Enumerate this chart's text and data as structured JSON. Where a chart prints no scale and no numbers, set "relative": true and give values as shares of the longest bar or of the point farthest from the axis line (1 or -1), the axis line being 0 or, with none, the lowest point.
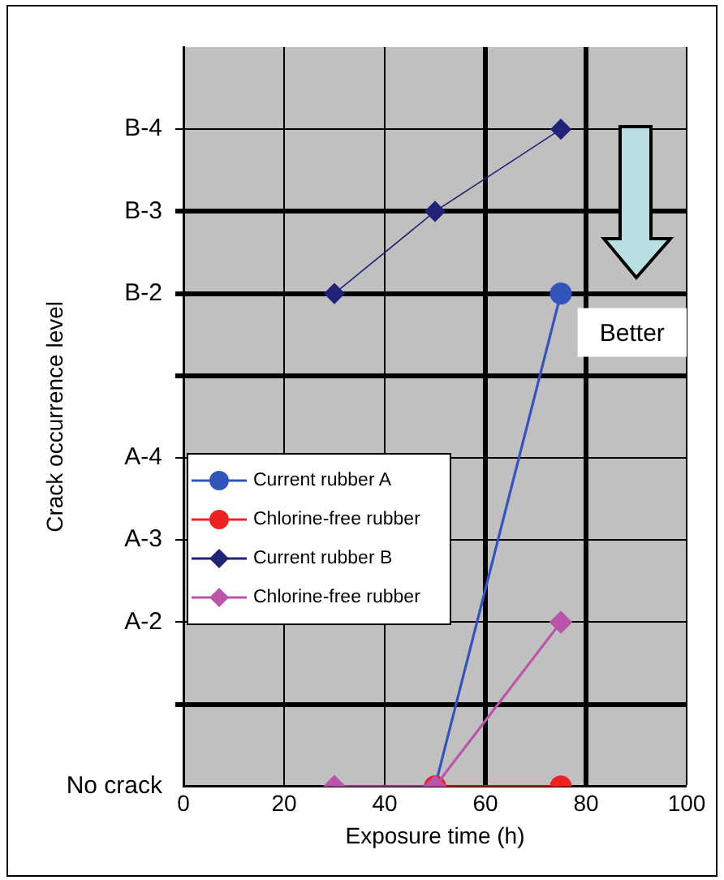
{
  "chart_data": {
    "type": "line",
    "xlabel": "Exposure time (h)",
    "ylabel": "Crack occurrence level",
    "xlim": [
      0,
      100
    ],
    "xticks": [
      0,
      20,
      40,
      60,
      80,
      100
    ],
    "relative": true,
    "y_categories": [
      null,
      "B-4",
      "B-3",
      "B-2",
      null,
      "A-4",
      "A-3",
      "A-2",
      null,
      "No crack"
    ],
    "grid": true,
    "legend": "left",
    "line_style": "solid",
    "series": [
      {
        "name": "Current rubber A",
        "color": "#3355bb",
        "marker": "circle",
        "x": [
          50,
          75
        ],
        "values": [
          0,
          0.75
        ]
      },
      {
        "name": "Chlorine-free rubber",
        "color": "#ee2222",
        "marker": "circle",
        "x": [
          50,
          75
        ],
        "values": [
          0,
          0
        ]
      },
      {
        "name": "Current rubber B",
        "color": "#222277",
        "marker": "diamond",
        "x": [
          30,
          50,
          75
        ],
        "values": [
          0.75,
          0.875,
          1
        ]
      },
      {
        "name": "Chlorine-free rubber",
        "color": "#bb55aa",
        "marker": "diamond",
        "x": [
          30,
          50,
          75
        ],
        "values": [
          0,
          0,
          0.25
        ]
      }
    ],
    "annotations": [
      "Better"
    ]
  }
}
